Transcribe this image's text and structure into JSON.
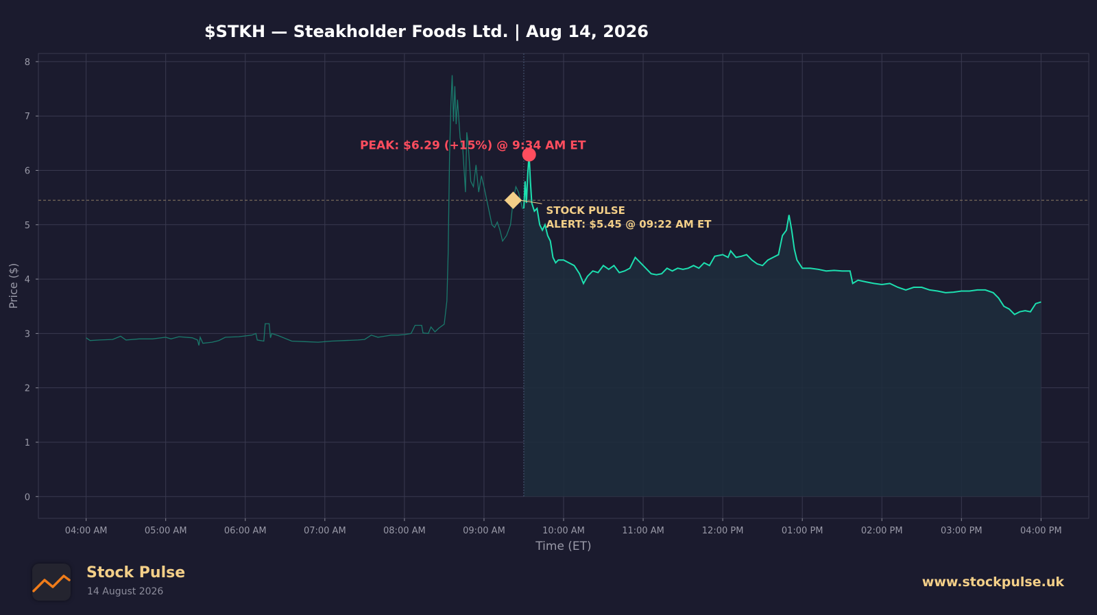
{
  "chart_data": {
    "type": "line",
    "title": "$STKH — Steakholder Foods Ltd.  |  Aug 14, 2026",
    "xlabel": "Time (ET)",
    "ylabel": "Price ($)",
    "ylim": [
      -0.4,
      8.15
    ],
    "yticks": [
      0,
      1,
      2,
      3,
      4,
      5,
      6,
      7,
      8
    ],
    "xtick_labels": [
      "04:00 AM",
      "05:00 AM",
      "06:00 AM",
      "07:00 AM",
      "08:00 AM",
      "09:00 AM",
      "10:00 AM",
      "11:00 AM",
      "12:00 PM",
      "01:00 PM",
      "02:00 PM",
      "03:00 PM",
      "04:00 PM"
    ],
    "grid": true,
    "series": [
      {
        "segment": "pre-market",
        "color": "#1a7a6c",
        "points": [
          [
            "04:00",
            2.92
          ],
          [
            "04:03",
            2.87
          ],
          [
            "04:10",
            2.88
          ],
          [
            "04:20",
            2.89
          ],
          [
            "04:26",
            2.95
          ],
          [
            "04:30",
            2.88
          ],
          [
            "04:40",
            2.9
          ],
          [
            "04:50",
            2.9
          ],
          [
            "05:00",
            2.93
          ],
          [
            "05:04",
            2.9
          ],
          [
            "05:10",
            2.94
          ],
          [
            "05:20",
            2.92
          ],
          [
            "05:24",
            2.88
          ],
          [
            "05:25",
            2.78
          ],
          [
            "05:26",
            2.93
          ],
          [
            "05:28",
            2.82
          ],
          [
            "05:35",
            2.84
          ],
          [
            "05:40",
            2.87
          ],
          [
            "05:45",
            2.93
          ],
          [
            "05:55",
            2.94
          ],
          [
            "06:05",
            2.97
          ],
          [
            "06:08",
            3.0
          ],
          [
            "06:09",
            2.88
          ],
          [
            "06:14",
            2.86
          ],
          [
            "06:15",
            3.18
          ],
          [
            "06:18",
            3.18
          ],
          [
            "06:19",
            2.92
          ],
          [
            "06:20",
            3.0
          ],
          [
            "06:25",
            2.96
          ],
          [
            "06:35",
            2.86
          ],
          [
            "06:45",
            2.85
          ],
          [
            "06:55",
            2.84
          ],
          [
            "07:05",
            2.86
          ],
          [
            "07:15",
            2.87
          ],
          [
            "07:25",
            2.88
          ],
          [
            "07:30",
            2.89
          ],
          [
            "07:35",
            2.97
          ],
          [
            "07:40",
            2.93
          ],
          [
            "07:45",
            2.95
          ],
          [
            "07:50",
            2.97
          ],
          [
            "07:55",
            2.97
          ],
          [
            "08:00",
            2.98
          ],
          [
            "08:05",
            3.0
          ],
          [
            "08:08",
            3.15
          ],
          [
            "08:13",
            3.15
          ],
          [
            "08:14",
            3.01
          ],
          [
            "08:18",
            3.0
          ],
          [
            "08:20",
            3.12
          ],
          [
            "08:23",
            3.03
          ],
          [
            "08:26",
            3.1
          ],
          [
            "08:30",
            3.17
          ],
          [
            "08:32",
            3.6
          ],
          [
            "08:33",
            4.5
          ],
          [
            "08:34",
            6.2
          ],
          [
            "08:35",
            7.2
          ],
          [
            "08:36",
            7.75
          ],
          [
            "08:37",
            6.9
          ],
          [
            "08:38",
            7.55
          ],
          [
            "08:39",
            6.85
          ],
          [
            "08:40",
            7.3
          ],
          [
            "08:42",
            6.6
          ],
          [
            "08:44",
            6.4
          ],
          [
            "08:46",
            5.6
          ],
          [
            "08:47",
            6.7
          ],
          [
            "08:48",
            6.5
          ],
          [
            "08:50",
            5.8
          ],
          [
            "08:52",
            5.7
          ],
          [
            "08:54",
            6.1
          ],
          [
            "08:56",
            5.6
          ],
          [
            "08:58",
            5.9
          ],
          [
            "09:00",
            5.7
          ],
          [
            "09:06",
            5.0
          ],
          [
            "09:08",
            4.95
          ],
          [
            "09:10",
            5.05
          ],
          [
            "09:12",
            4.9
          ],
          [
            "09:14",
            4.7
          ],
          [
            "09:17",
            4.8
          ],
          [
            "09:20",
            5.0
          ],
          [
            "09:22",
            5.45
          ],
          [
            "09:24",
            5.7
          ],
          [
            "09:26",
            5.6
          ],
          [
            "09:29",
            5.3
          ],
          [
            "09:30",
            5.3
          ]
        ]
      },
      {
        "segment": "regular",
        "color": "#1de0b0",
        "points": [
          [
            "09:30",
            5.3
          ],
          [
            "09:31",
            5.8
          ],
          [
            "09:32",
            5.4
          ],
          [
            "09:33",
            5.95
          ],
          [
            "09:34",
            6.29
          ],
          [
            "09:35",
            5.8
          ],
          [
            "09:36",
            5.4
          ],
          [
            "09:38",
            5.25
          ],
          [
            "09:40",
            5.3
          ],
          [
            "09:42",
            5.0
          ],
          [
            "09:44",
            4.9
          ],
          [
            "09:46",
            5.0
          ],
          [
            "09:48",
            4.8
          ],
          [
            "09:50",
            4.7
          ],
          [
            "09:52",
            4.4
          ],
          [
            "09:54",
            4.3
          ],
          [
            "09:56",
            4.35
          ],
          [
            "10:00",
            4.35
          ],
          [
            "10:04",
            4.3
          ],
          [
            "10:08",
            4.25
          ],
          [
            "10:12",
            4.1
          ],
          [
            "10:15",
            3.92
          ],
          [
            "10:18",
            4.05
          ],
          [
            "10:22",
            4.15
          ],
          [
            "10:26",
            4.12
          ],
          [
            "10:30",
            4.25
          ],
          [
            "10:34",
            4.18
          ],
          [
            "10:38",
            4.25
          ],
          [
            "10:42",
            4.12
          ],
          [
            "10:46",
            4.15
          ],
          [
            "10:50",
            4.2
          ],
          [
            "10:54",
            4.4
          ],
          [
            "10:58",
            4.3
          ],
          [
            "11:02",
            4.2
          ],
          [
            "11:06",
            4.1
          ],
          [
            "11:10",
            4.08
          ],
          [
            "11:14",
            4.1
          ],
          [
            "11:18",
            4.2
          ],
          [
            "11:22",
            4.15
          ],
          [
            "11:26",
            4.2
          ],
          [
            "11:30",
            4.18
          ],
          [
            "11:34",
            4.2
          ],
          [
            "11:38",
            4.25
          ],
          [
            "11:42",
            4.2
          ],
          [
            "11:46",
            4.3
          ],
          [
            "11:50",
            4.25
          ],
          [
            "11:54",
            4.42
          ],
          [
            "12:00",
            4.45
          ],
          [
            "12:04",
            4.4
          ],
          [
            "12:06",
            4.52
          ],
          [
            "12:10",
            4.4
          ],
          [
            "12:14",
            4.42
          ],
          [
            "12:18",
            4.45
          ],
          [
            "12:22",
            4.35
          ],
          [
            "12:26",
            4.28
          ],
          [
            "12:30",
            4.25
          ],
          [
            "12:34",
            4.35
          ],
          [
            "12:38",
            4.4
          ],
          [
            "12:42",
            4.45
          ],
          [
            "12:45",
            4.8
          ],
          [
            "12:48",
            4.9
          ],
          [
            "12:50",
            5.18
          ],
          [
            "12:52",
            4.9
          ],
          [
            "12:54",
            4.55
          ],
          [
            "12:56",
            4.35
          ],
          [
            "13:00",
            4.2
          ],
          [
            "13:06",
            4.2
          ],
          [
            "13:12",
            4.18
          ],
          [
            "13:18",
            4.15
          ],
          [
            "13:24",
            4.16
          ],
          [
            "13:30",
            4.15
          ],
          [
            "13:36",
            4.15
          ],
          [
            "13:38",
            3.92
          ],
          [
            "13:42",
            3.98
          ],
          [
            "13:48",
            3.95
          ],
          [
            "13:54",
            3.92
          ],
          [
            "14:00",
            3.9
          ],
          [
            "14:06",
            3.92
          ],
          [
            "14:12",
            3.85
          ],
          [
            "14:18",
            3.8
          ],
          [
            "14:24",
            3.85
          ],
          [
            "14:30",
            3.85
          ],
          [
            "14:36",
            3.8
          ],
          [
            "14:42",
            3.78
          ],
          [
            "14:48",
            3.75
          ],
          [
            "14:54",
            3.76
          ],
          [
            "15:00",
            3.78
          ],
          [
            "15:06",
            3.78
          ],
          [
            "15:12",
            3.8
          ],
          [
            "15:18",
            3.8
          ],
          [
            "15:24",
            3.75
          ],
          [
            "15:28",
            3.65
          ],
          [
            "15:32",
            3.5
          ],
          [
            "15:36",
            3.45
          ],
          [
            "15:40",
            3.35
          ],
          [
            "15:44",
            3.4
          ],
          [
            "15:48",
            3.42
          ],
          [
            "15:52",
            3.4
          ],
          [
            "15:56",
            3.55
          ],
          [
            "16:00",
            3.58
          ]
        ]
      }
    ],
    "reference_line": {
      "y": 5.45,
      "style": "dashed"
    },
    "session_open_marker": "09:30",
    "annotations": {
      "peak": {
        "time": "09:34",
        "price": 6.29,
        "label": "PEAK: $6.29 (+15%) @ 9:34 AM ET",
        "color": "#ff4d5e"
      },
      "alert": {
        "time": "09:22",
        "price": 5.45,
        "label_line1": "STOCK PULSE",
        "label_line2": "ALERT: $5.45 @ 09:22 AM ET",
        "color": "#f3cf88"
      }
    }
  },
  "footer": {
    "brand_name": "Stock Pulse",
    "date": "14 August 2026",
    "url": "www.stockpulse.uk",
    "logo_icon": "trend-line-icon"
  }
}
